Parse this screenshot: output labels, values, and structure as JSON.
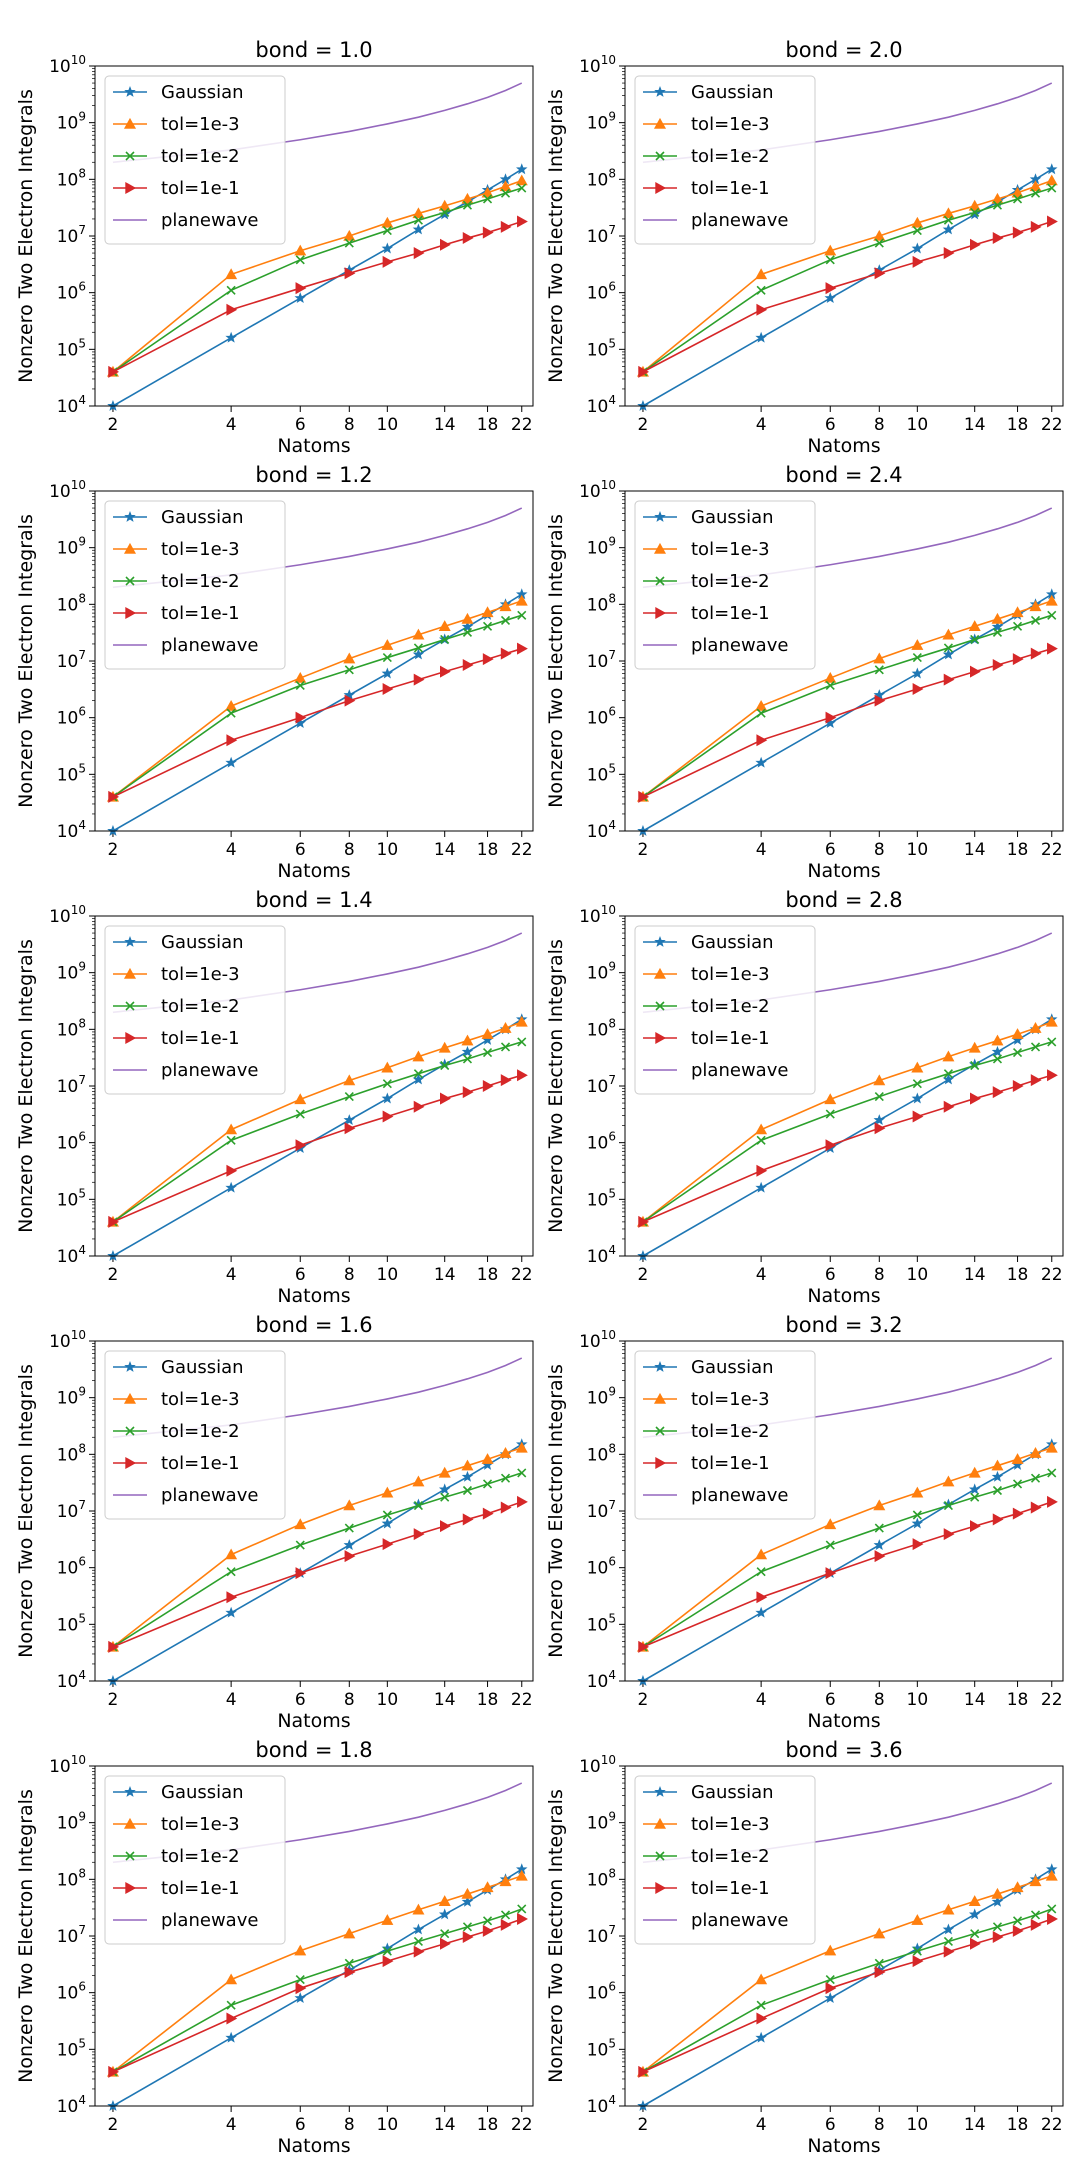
{
  "figure": {
    "ylabel": "Nonzero Two Electron Integrals",
    "xlabel": "Natoms"
  },
  "chart_data": {
    "type": "line",
    "y_scale": "log",
    "ylim": [
      10000,
      10000000000
    ],
    "x_ticks": [
      2,
      4,
      6,
      8,
      10,
      14,
      18,
      22
    ],
    "x_tick_labels": [
      "2",
      "4",
      "6",
      "8",
      "10",
      "14",
      "18",
      "22"
    ],
    "y_tick_exponents": [
      4,
      5,
      6,
      7,
      8,
      9,
      10
    ],
    "y_tick_base": "10",
    "legend_position": "upper-left",
    "x": [
      2,
      4,
      6,
      8,
      10,
      12,
      14,
      16,
      18,
      20,
      22
    ],
    "series_styles": [
      {
        "name": "Gaussian",
        "color": "#1f77b4",
        "marker": "star"
      },
      {
        "name": "tol=1e-3",
        "color": "#ff7f0e",
        "marker": "triangle-up"
      },
      {
        "name": "tol=1e-2",
        "color": "#2ca02c",
        "marker": "x"
      },
      {
        "name": "tol=1e-1",
        "color": "#d62728",
        "marker": "triangle-right"
      },
      {
        "name": "planewave",
        "color": "#9467bd",
        "marker": "none"
      }
    ],
    "panels": [
      {
        "title": "bond = 1.0",
        "series": [
          {
            "name": "Gaussian",
            "values": [
              10000,
              160000,
              800000,
              2500000,
              6000000,
              13000000,
              24000000,
              40000000,
              65000000,
              100000000,
              150000000
            ]
          },
          {
            "name": "tol=1e-3",
            "values": [
              40000,
              2100000,
              5500000,
              10000000,
              17000000,
              25000000,
              34000000,
              45000000,
              58000000,
              75000000,
              95000000
            ]
          },
          {
            "name": "tol=1e-2",
            "values": [
              40000,
              1100000,
              3800000,
              7500000,
              12500000,
              19000000,
              26000000,
              35000000,
              45000000,
              57000000,
              70000000
            ]
          },
          {
            "name": "tol=1e-1",
            "values": [
              40000,
              500000,
              1200000,
              2200000,
              3500000,
              5000000,
              7000000,
              9200000,
              11500000,
              14500000,
              18000000
            ]
          },
          {
            "name": "planewave",
            "values": [
              200000000,
              330000000,
              500000000,
              700000000,
              950000000,
              1250000000,
              1650000000,
              2150000000,
              2800000000,
              3700000000,
              5000000000
            ]
          }
        ]
      },
      {
        "title": "bond = 2.0",
        "series": [
          {
            "name": "Gaussian",
            "values": [
              10000,
              160000,
              800000,
              2500000,
              6000000,
              13000000,
              24000000,
              40000000,
              65000000,
              100000000,
              150000000
            ]
          },
          {
            "name": "tol=1e-3",
            "values": [
              40000,
              2100000,
              5500000,
              10000000,
              17000000,
              25000000,
              34000000,
              45000000,
              58000000,
              75000000,
              95000000
            ]
          },
          {
            "name": "tol=1e-2",
            "values": [
              40000,
              1100000,
              3800000,
              7500000,
              12500000,
              19000000,
              26000000,
              35000000,
              45000000,
              57000000,
              70000000
            ]
          },
          {
            "name": "tol=1e-1",
            "values": [
              40000,
              500000,
              1200000,
              2200000,
              3500000,
              5000000,
              7000000,
              9200000,
              11500000,
              14500000,
              18000000
            ]
          },
          {
            "name": "planewave",
            "values": [
              200000000,
              330000000,
              500000000,
              700000000,
              950000000,
              1250000000,
              1650000000,
              2150000000,
              2800000000,
              3700000000,
              5000000000
            ]
          }
        ]
      },
      {
        "title": "bond = 1.2",
        "series": [
          {
            "name": "Gaussian",
            "values": [
              10000,
              160000,
              800000,
              2500000,
              6000000,
              13000000,
              24000000,
              40000000,
              65000000,
              100000000,
              150000000
            ]
          },
          {
            "name": "tol=1e-3",
            "values": [
              40000,
              1600000,
              5000000,
              11000000,
              19000000,
              29000000,
              41000000,
              55000000,
              72000000,
              92000000,
              115000000
            ]
          },
          {
            "name": "tol=1e-2",
            "values": [
              40000,
              1200000,
              3700000,
              7000000,
              11500000,
              17000000,
              24000000,
              32000000,
              41000000,
              52000000,
              64000000
            ]
          },
          {
            "name": "tol=1e-1",
            "values": [
              40000,
              400000,
              1000000,
              2000000,
              3200000,
              4700000,
              6500000,
              8500000,
              10800000,
              13500000,
              16500000
            ]
          },
          {
            "name": "planewave",
            "values": [
              200000000,
              330000000,
              500000000,
              700000000,
              950000000,
              1250000000,
              1650000000,
              2150000000,
              2800000000,
              3700000000,
              5000000000
            ]
          }
        ]
      },
      {
        "title": "bond = 2.4",
        "series": [
          {
            "name": "Gaussian",
            "values": [
              10000,
              160000,
              800000,
              2500000,
              6000000,
              13000000,
              24000000,
              40000000,
              65000000,
              100000000,
              150000000
            ]
          },
          {
            "name": "tol=1e-3",
            "values": [
              40000,
              1600000,
              5000000,
              11000000,
              19000000,
              29000000,
              41000000,
              55000000,
              72000000,
              92000000,
              115000000
            ]
          },
          {
            "name": "tol=1e-2",
            "values": [
              40000,
              1200000,
              3700000,
              7000000,
              11500000,
              17000000,
              24000000,
              32000000,
              41000000,
              52000000,
              64000000
            ]
          },
          {
            "name": "tol=1e-1",
            "values": [
              40000,
              400000,
              1000000,
              2000000,
              3200000,
              4700000,
              6500000,
              8500000,
              10800000,
              13500000,
              16500000
            ]
          },
          {
            "name": "planewave",
            "values": [
              200000000,
              330000000,
              500000000,
              700000000,
              950000000,
              1250000000,
              1650000000,
              2150000000,
              2800000000,
              3700000000,
              5000000000
            ]
          }
        ]
      },
      {
        "title": "bond = 1.4",
        "series": [
          {
            "name": "Gaussian",
            "values": [
              10000,
              160000,
              800000,
              2500000,
              6000000,
              13000000,
              24000000,
              40000000,
              65000000,
              100000000,
              150000000
            ]
          },
          {
            "name": "tol=1e-3",
            "values": [
              40000,
              1700000,
              5800000,
              12500000,
              21000000,
              33000000,
              47000000,
              63000000,
              82000000,
              105000000,
              135000000
            ]
          },
          {
            "name": "tol=1e-2",
            "values": [
              40000,
              1100000,
              3200000,
              6500000,
              11000000,
              16500000,
              23000000,
              30000000,
              39000000,
              49000000,
              60000000
            ]
          },
          {
            "name": "tol=1e-1",
            "values": [
              40000,
              320000,
              900000,
              1800000,
              2900000,
              4300000,
              6000000,
              7800000,
              10000000,
              12700000,
              15500000
            ]
          },
          {
            "name": "planewave",
            "values": [
              200000000,
              330000000,
              500000000,
              700000000,
              950000000,
              1250000000,
              1650000000,
              2150000000,
              2800000000,
              3700000000,
              5000000000
            ]
          }
        ]
      },
      {
        "title": "bond = 2.8",
        "series": [
          {
            "name": "Gaussian",
            "values": [
              10000,
              160000,
              800000,
              2500000,
              6000000,
              13000000,
              24000000,
              40000000,
              65000000,
              100000000,
              150000000
            ]
          },
          {
            "name": "tol=1e-3",
            "values": [
              40000,
              1700000,
              5800000,
              12500000,
              21000000,
              33000000,
              47000000,
              63000000,
              82000000,
              105000000,
              135000000
            ]
          },
          {
            "name": "tol=1e-2",
            "values": [
              40000,
              1100000,
              3200000,
              6500000,
              11000000,
              16500000,
              23000000,
              30000000,
              39000000,
              49000000,
              60000000
            ]
          },
          {
            "name": "tol=1e-1",
            "values": [
              40000,
              320000,
              900000,
              1800000,
              2900000,
              4300000,
              6000000,
              7800000,
              10000000,
              12700000,
              15500000
            ]
          },
          {
            "name": "planewave",
            "values": [
              200000000,
              330000000,
              500000000,
              700000000,
              950000000,
              1250000000,
              1650000000,
              2150000000,
              2800000000,
              3700000000,
              5000000000
            ]
          }
        ]
      },
      {
        "title": "bond = 1.6",
        "series": [
          {
            "name": "Gaussian",
            "values": [
              10000,
              160000,
              800000,
              2500000,
              6000000,
              13000000,
              24000000,
              40000000,
              65000000,
              100000000,
              150000000
            ]
          },
          {
            "name": "tol=1e-3",
            "values": [
              40000,
              1700000,
              5800000,
              12500000,
              21000000,
              33000000,
              47000000,
              63000000,
              82000000,
              105000000,
              130000000
            ]
          },
          {
            "name": "tol=1e-2",
            "values": [
              40000,
              850000,
              2500000,
              5000000,
              8500000,
              12500000,
              17500000,
              23000000,
              30000000,
              38000000,
              47000000
            ]
          },
          {
            "name": "tol=1e-1",
            "values": [
              40000,
              300000,
              800000,
              1600000,
              2600000,
              3900000,
              5400000,
              7100000,
              9000000,
              11500000,
              14500000
            ]
          },
          {
            "name": "planewave",
            "values": [
              200000000,
              330000000,
              500000000,
              700000000,
              950000000,
              1250000000,
              1650000000,
              2150000000,
              2800000000,
              3700000000,
              5000000000
            ]
          }
        ]
      },
      {
        "title": "bond = 3.2",
        "series": [
          {
            "name": "Gaussian",
            "values": [
              10000,
              160000,
              800000,
              2500000,
              6000000,
              13000000,
              24000000,
              40000000,
              65000000,
              100000000,
              150000000
            ]
          },
          {
            "name": "tol=1e-3",
            "values": [
              40000,
              1700000,
              5800000,
              12500000,
              21000000,
              33000000,
              47000000,
              63000000,
              82000000,
              105000000,
              130000000
            ]
          },
          {
            "name": "tol=1e-2",
            "values": [
              40000,
              850000,
              2500000,
              5000000,
              8500000,
              12500000,
              17500000,
              23000000,
              30000000,
              38000000,
              47000000
            ]
          },
          {
            "name": "tol=1e-1",
            "values": [
              40000,
              300000,
              800000,
              1600000,
              2600000,
              3900000,
              5400000,
              7100000,
              9000000,
              11500000,
              14500000
            ]
          },
          {
            "name": "planewave",
            "values": [
              200000000,
              330000000,
              500000000,
              700000000,
              950000000,
              1250000000,
              1650000000,
              2150000000,
              2800000000,
              3700000000,
              5000000000
            ]
          }
        ]
      },
      {
        "title": "bond = 1.8",
        "series": [
          {
            "name": "Gaussian",
            "values": [
              10000,
              160000,
              800000,
              2500000,
              6000000,
              13000000,
              24000000,
              40000000,
              65000000,
              100000000,
              150000000
            ]
          },
          {
            "name": "tol=1e-3",
            "values": [
              40000,
              1700000,
              5500000,
              11000000,
              19000000,
              29000000,
              41000000,
              55000000,
              72000000,
              92000000,
              115000000
            ]
          },
          {
            "name": "tol=1e-2",
            "values": [
              40000,
              600000,
              1700000,
              3300000,
              5400000,
              8000000,
              11000000,
              14500000,
              18500000,
              23500000,
              30000000
            ]
          },
          {
            "name": "tol=1e-1",
            "values": [
              40000,
              350000,
              1200000,
              2300000,
              3600000,
              5300000,
              7300000,
              9600000,
              12300000,
              15700000,
              20000000
            ]
          },
          {
            "name": "planewave",
            "values": [
              200000000,
              330000000,
              500000000,
              700000000,
              950000000,
              1250000000,
              1650000000,
              2150000000,
              2800000000,
              3700000000,
              5000000000
            ]
          }
        ]
      },
      {
        "title": "bond = 3.6",
        "series": [
          {
            "name": "Gaussian",
            "values": [
              10000,
              160000,
              800000,
              2500000,
              6000000,
              13000000,
              24000000,
              40000000,
              65000000,
              100000000,
              150000000
            ]
          },
          {
            "name": "tol=1e-3",
            "values": [
              40000,
              1700000,
              5500000,
              11000000,
              19000000,
              29000000,
              41000000,
              55000000,
              72000000,
              92000000,
              115000000
            ]
          },
          {
            "name": "tol=1e-2",
            "values": [
              40000,
              600000,
              1700000,
              3300000,
              5400000,
              8000000,
              11000000,
              14500000,
              18500000,
              23500000,
              30000000
            ]
          },
          {
            "name": "tol=1e-1",
            "values": [
              40000,
              350000,
              1200000,
              2300000,
              3600000,
              5300000,
              7300000,
              9600000,
              12300000,
              15700000,
              20000000
            ]
          },
          {
            "name": "planewave",
            "values": [
              200000000,
              330000000,
              500000000,
              700000000,
              950000000,
              1250000000,
              1650000000,
              2150000000,
              2800000000,
              3700000000,
              5000000000
            ]
          }
        ]
      }
    ]
  }
}
